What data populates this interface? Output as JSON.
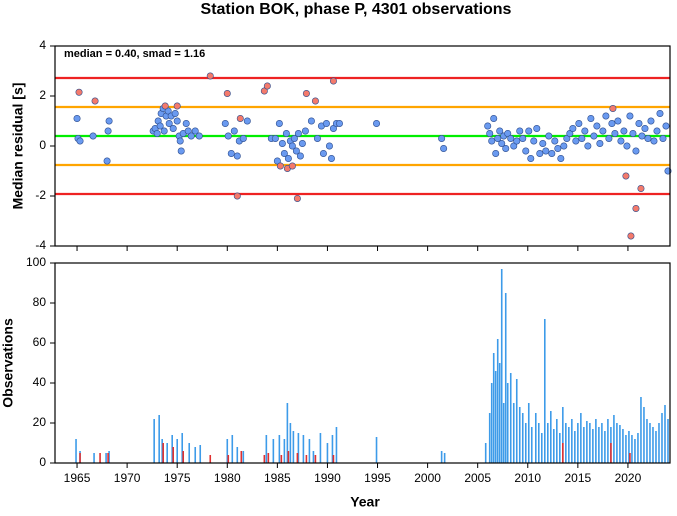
{
  "chart_data": [
    {
      "type": "scatter",
      "title": "Station BOK, phase P, 4301 observations",
      "y_label": "Median residual [s]",
      "annotation": "median = 0.40, smad = 1.16",
      "xlim": [
        1962.8,
        2024.2
      ],
      "xticks": [
        1965,
        1970,
        1975,
        1980,
        1985,
        1990,
        1995,
        2000,
        2005,
        2010,
        2015,
        2020
      ],
      "ylim": [
        -4,
        4
      ],
      "yticks": [
        -4,
        -2,
        0,
        2,
        4
      ],
      "ref_lines": [
        {
          "value": 2.72,
          "color": "#ee2222"
        },
        {
          "value": 1.56,
          "color": "#ffa500"
        },
        {
          "value": 0.4,
          "color": "#00ee00"
        },
        {
          "value": -0.76,
          "color": "#ffa500"
        },
        {
          "value": -1.92,
          "color": "#ee2222"
        }
      ],
      "series": [
        {
          "color": "#6a9af0",
          "x": [
            1965.0,
            1965.1,
            1965.3,
            1966.6,
            1968.1,
            1968.2,
            1968.0,
            1972.6,
            1972.8,
            1973.0,
            1973.1,
            1973.3,
            1973.4,
            1973.6,
            1973.7,
            1973.9,
            1974.1,
            1974.2,
            1974.4,
            1974.6,
            1974.8,
            1975.0,
            1975.2,
            1975.3,
            1975.4,
            1975.6,
            1975.9,
            1976.1,
            1976.4,
            1976.8,
            1977.2,
            1979.8,
            1980.1,
            1980.4,
            1980.7,
            1981.0,
            1981.2,
            1981.6,
            1982.0,
            1984.4,
            1984.8,
            1985.0,
            1985.2,
            1985.5,
            1985.7,
            1985.9,
            1986.1,
            1986.3,
            1986.5,
            1986.7,
            1986.9,
            1987.1,
            1987.3,
            1987.5,
            1987.8,
            1988.4,
            1989.0,
            1989.4,
            1989.6,
            1989.9,
            1990.2,
            1990.4,
            1990.6,
            1990.9,
            1991.2,
            1994.9,
            2001.4,
            2001.6,
            2006.0,
            2006.2,
            2006.4,
            2006.6,
            2006.8,
            2007.0,
            2007.2,
            2007.4,
            2007.6,
            2007.8,
            2008.0,
            2008.3,
            2008.6,
            2008.9,
            2009.2,
            2009.5,
            2009.8,
            2010.1,
            2010.3,
            2010.6,
            2010.9,
            2011.2,
            2011.5,
            2011.8,
            2012.1,
            2012.4,
            2012.7,
            2013.0,
            2013.3,
            2013.6,
            2013.9,
            2014.2,
            2014.5,
            2014.8,
            2015.1,
            2015.4,
            2015.7,
            2016.0,
            2016.3,
            2016.6,
            2016.9,
            2017.2,
            2017.5,
            2017.8,
            2018.1,
            2018.4,
            2018.7,
            2019.0,
            2019.3,
            2019.6,
            2019.9,
            2020.2,
            2020.5,
            2020.8,
            2021.1,
            2021.4,
            2021.7,
            2022.0,
            2022.3,
            2022.6,
            2022.9,
            2023.2,
            2023.5,
            2023.8,
            2024.0
          ],
          "values": [
            1.1,
            0.3,
            0.2,
            0.4,
            0.6,
            1.0,
            -0.6,
            0.6,
            0.7,
            0.5,
            1.0,
            0.8,
            1.3,
            1.5,
            0.6,
            1.2,
            1.4,
            0.9,
            1.2,
            0.7,
            1.3,
            1.0,
            0.4,
            0.2,
            -0.2,
            0.5,
            0.9,
            0.6,
            0.4,
            0.6,
            0.4,
            0.9,
            0.4,
            -0.3,
            0.6,
            -0.4,
            0.2,
            0.3,
            1.0,
            0.3,
            0.3,
            -0.6,
            0.9,
            0.1,
            -0.3,
            0.5,
            -0.5,
            0.2,
            0.0,
            0.3,
            -0.2,
            0.5,
            -0.4,
            0.1,
            0.6,
            1.0,
            0.3,
            0.8,
            -0.3,
            0.9,
            0.0,
            -0.5,
            0.7,
            0.9,
            0.9,
            0.9,
            0.3,
            -0.1,
            0.8,
            0.5,
            0.2,
            1.1,
            -0.3,
            0.3,
            0.6,
            0.1,
            0.4,
            -0.1,
            0.5,
            0.3,
            0.0,
            0.2,
            0.6,
            0.3,
            -0.2,
            0.6,
            -0.5,
            0.2,
            0.7,
            -0.3,
            0.1,
            -0.2,
            0.4,
            -0.3,
            0.2,
            -0.1,
            -0.5,
            0.0,
            0.3,
            0.5,
            0.7,
            0.2,
            0.9,
            0.3,
            0.6,
            0.0,
            1.1,
            0.4,
            0.8,
            0.1,
            0.6,
            1.2,
            0.3,
            0.9,
            0.5,
            1.0,
            0.2,
            0.6,
            0.0,
            1.2,
            0.5,
            -0.2,
            0.9,
            0.4,
            0.7,
            0.3,
            1.0,
            0.2,
            0.6,
            1.3,
            0.3,
            0.8,
            -1.0
          ]
        },
        {
          "color": "#f47a6b",
          "x": [
            1965.2,
            1966.8,
            1973.8,
            1975.0,
            1978.3,
            1980.0,
            1981.0,
            1981.3,
            1983.7,
            1984.0,
            1985.3,
            1986.0,
            1986.5,
            1987.0,
            1987.9,
            1988.8,
            1990.6,
            2018.5,
            2019.8,
            2020.3,
            2020.8,
            2021.3
          ],
          "values": [
            2.15,
            1.8,
            1.6,
            1.6,
            2.8,
            2.1,
            -2.0,
            1.1,
            2.2,
            2.4,
            -0.8,
            -0.9,
            -0.8,
            -2.1,
            2.1,
            1.8,
            2.6,
            1.5,
            -1.2,
            -3.6,
            -2.5,
            -1.7
          ]
        }
      ]
    },
    {
      "type": "bar",
      "x_label": "Year",
      "y_label": "Observations",
      "xlim": [
        1962.8,
        2024.2
      ],
      "xticks": [
        1965,
        1970,
        1975,
        1980,
        1985,
        1990,
        1995,
        2000,
        2005,
        2010,
        2015,
        2020
      ],
      "ylim": [
        0,
        100
      ],
      "yticks": [
        0,
        20,
        40,
        60,
        80,
        100
      ],
      "series": [
        {
          "color": "#3d9be9",
          "x": [
            1964.9,
            1965.3,
            1966.7,
            1967.9,
            1968.2,
            1972.7,
            1973.2,
            1973.5,
            1974.0,
            1974.5,
            1975.0,
            1975.5,
            1976.2,
            1976.8,
            1977.3,
            1980.0,
            1980.5,
            1981.0,
            1981.6,
            1983.9,
            1984.6,
            1985.2,
            1985.7,
            1986.0,
            1986.3,
            1986.6,
            1987.1,
            1987.6,
            1988.2,
            1988.6,
            1989.3,
            1990.0,
            1990.5,
            1990.9,
            1994.9,
            2001.4,
            2001.7,
            2005.8,
            2006.2,
            2006.4,
            2006.6,
            2006.8,
            2007.0,
            2007.2,
            2007.4,
            2007.6,
            2007.8,
            2008.0,
            2008.3,
            2008.6,
            2008.9,
            2009.2,
            2009.5,
            2009.8,
            2010.1,
            2010.4,
            2010.8,
            2011.1,
            2011.4,
            2011.7,
            2012.0,
            2012.3,
            2012.6,
            2012.9,
            2013.2,
            2013.5,
            2013.8,
            2014.1,
            2014.4,
            2014.7,
            2015.0,
            2015.3,
            2015.6,
            2015.9,
            2016.2,
            2016.5,
            2016.8,
            2017.1,
            2017.4,
            2017.7,
            2018.0,
            2018.3,
            2018.6,
            2018.9,
            2019.2,
            2019.5,
            2019.8,
            2020.1,
            2020.4,
            2020.7,
            2021.0,
            2021.3,
            2021.6,
            2021.9,
            2022.2,
            2022.5,
            2022.8,
            2023.1,
            2023.4,
            2023.7,
            2024.0
          ],
          "values": [
            12,
            6,
            5,
            5,
            6,
            22,
            24,
            12,
            10,
            14,
            12,
            15,
            10,
            8,
            9,
            12,
            14,
            8,
            6,
            14,
            12,
            14,
            12,
            30,
            20,
            16,
            15,
            14,
            12,
            6,
            15,
            10,
            14,
            18,
            13,
            6,
            5,
            10,
            25,
            40,
            55,
            46,
            62,
            50,
            97,
            30,
            85,
            40,
            45,
            30,
            42,
            28,
            25,
            20,
            30,
            18,
            25,
            20,
            15,
            72,
            20,
            26,
            17,
            22,
            15,
            28,
            20,
            18,
            22,
            16,
            20,
            25,
            18,
            21,
            20,
            17,
            22,
            18,
            20,
            16,
            22,
            18,
            24,
            20,
            19,
            17,
            14,
            16,
            14,
            12,
            15,
            33,
            28,
            22,
            20,
            18,
            16,
            20,
            25,
            29,
            22
          ]
        },
        {
          "color": "#e03030",
          "x": [
            1965.3,
            1967.3,
            1968.1,
            1973.6,
            1974.6,
            1975.6,
            1978.3,
            1980.1,
            1981.4,
            1983.7,
            1984.1,
            1985.4,
            1986.1,
            1987.0,
            1987.9,
            1988.8,
            1990.6,
            2013.5,
            2018.3,
            2020.2
          ],
          "values": [
            5,
            5,
            5,
            10,
            8,
            6,
            4,
            4,
            6,
            4,
            5,
            4,
            6,
            5,
            4,
            4,
            4,
            10,
            10,
            5
          ]
        }
      ]
    }
  ]
}
